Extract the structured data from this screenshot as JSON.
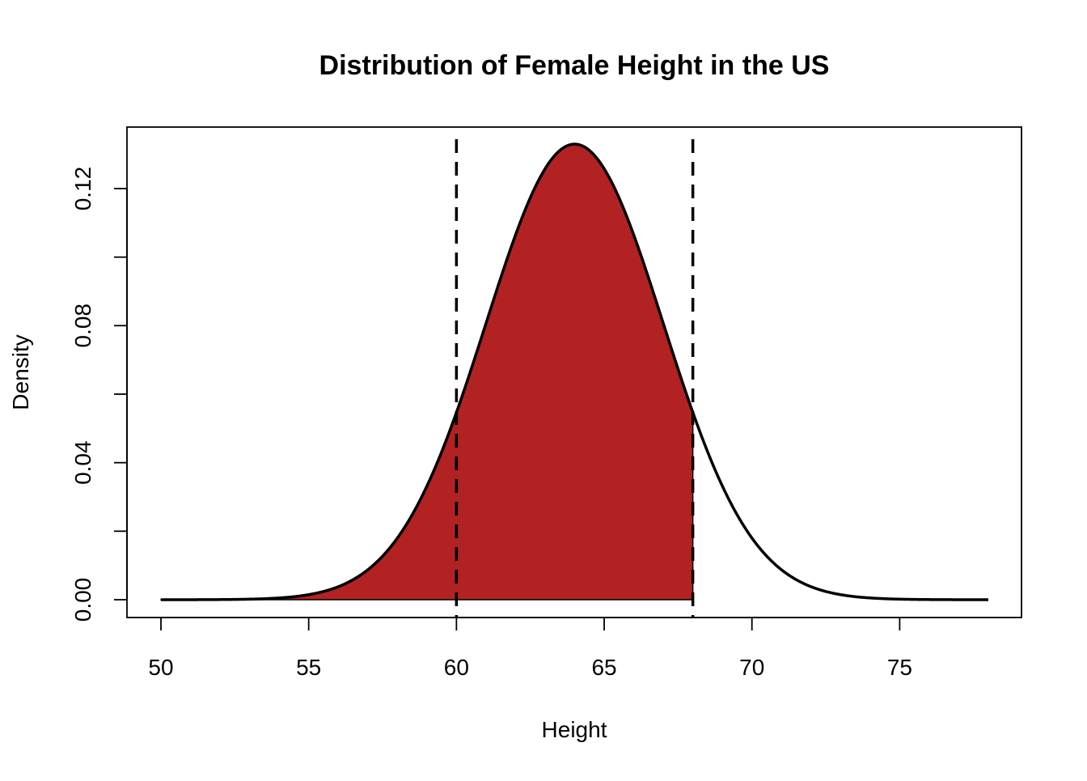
{
  "chart_data": {
    "type": "area",
    "title": "Distribution of Female Height in the US",
    "xlabel": "Height",
    "ylabel": "Density",
    "xlim": [
      50,
      78
    ],
    "ylim": [
      0,
      0.133
    ],
    "x_ticks": [
      50,
      55,
      60,
      65,
      70,
      75
    ],
    "y_ticks": [
      0.0,
      0.02,
      0.04,
      0.06,
      0.08,
      0.1,
      0.12
    ],
    "y_tick_labels": [
      "0.00",
      "",
      "0.04",
      "",
      "0.08",
      "",
      "0.12"
    ],
    "x_tick_labels": [
      "50",
      "55",
      "60",
      "65",
      "70",
      "75"
    ],
    "grid": false,
    "legend": "none",
    "series": [
      {
        "kind": "normal_density_curve",
        "mean": 64,
        "sd": 3,
        "x_range": [
          50,
          78
        ],
        "line_color": "#000000"
      }
    ],
    "shaded_region": {
      "x_from": 50,
      "x_to": 68,
      "color": "#b22222"
    },
    "reference_lines": [
      {
        "x": 60,
        "style": "dashed",
        "color": "#000000"
      },
      {
        "x": 68,
        "style": "dashed",
        "color": "#000000"
      }
    ]
  }
}
